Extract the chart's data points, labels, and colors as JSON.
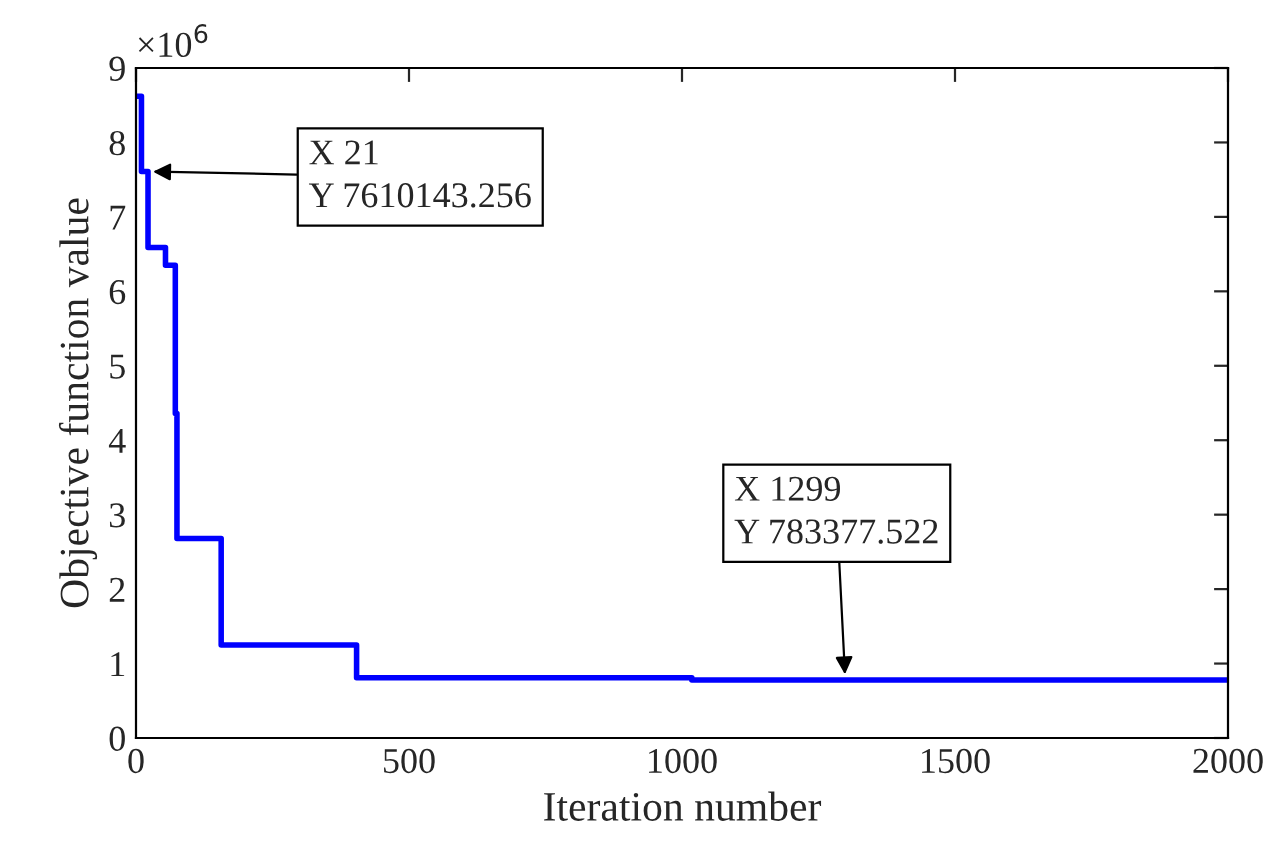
{
  "chart_data": {
    "type": "step",
    "xlabel": "Iteration number",
    "ylabel": "Objective function value",
    "x": [
      0,
      10,
      22,
      54,
      72,
      75,
      77,
      156,
      404,
      1018,
      2000
    ],
    "series": [
      {
        "color": "#0000ff",
        "values": [
          8.62,
          7.61,
          6.59,
          6.35,
          4.36,
          2.68,
          2.68,
          1.25,
          0.81,
          0.78,
          0.78
        ]
      }
    ],
    "xlim": [
      0,
      2000
    ],
    "xticks": [
      0,
      500,
      1000,
      1500,
      2000
    ],
    "ylim": [
      0,
      9
    ],
    "yticks": [
      0,
      1,
      2,
      3,
      4,
      5,
      6,
      7,
      8,
      9
    ],
    "annotations": [
      "×10$^{6}$",
      {
        "text": "X 21\nY 7610143.256",
        "x": 21,
        "y": 7.61
      },
      {
        "text": "X 1299\nY 783377.522",
        "x": 1299,
        "y": 0.78
      }
    ],
    "grid": false,
    "legend": false
  }
}
